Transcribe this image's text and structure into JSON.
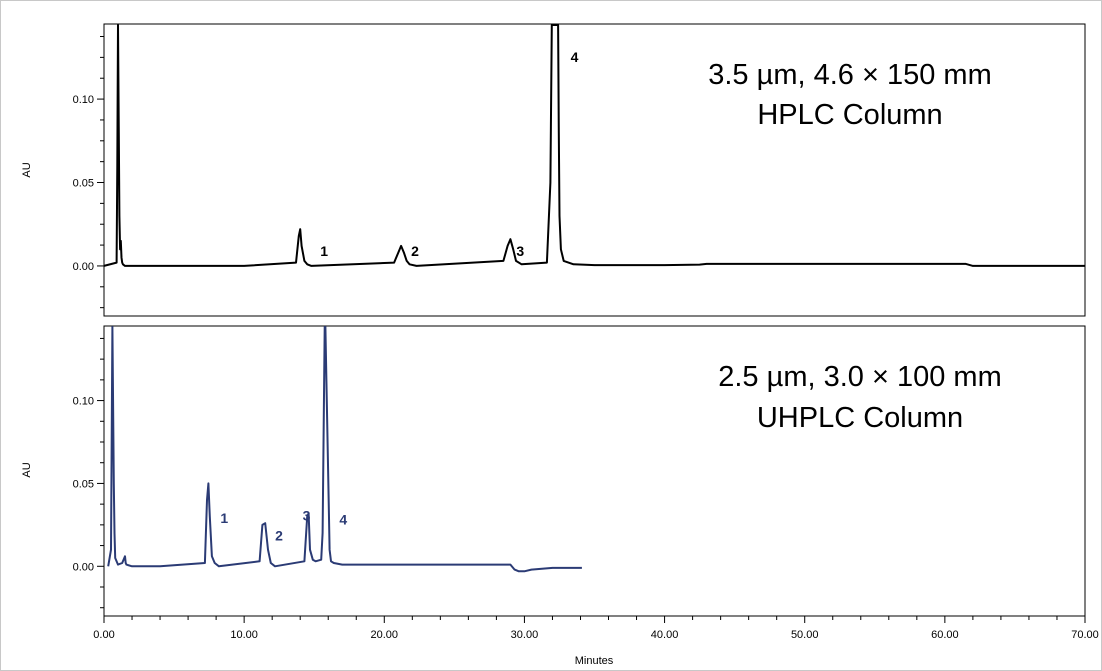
{
  "chart_data": [
    {
      "type": "line",
      "title_lines": [
        "3.5 µm, 4.6 × 150 mm",
        "HPLC Column"
      ],
      "ylabel": "AU",
      "xlim": [
        0,
        70
      ],
      "ylim": [
        -0.03,
        0.145
      ],
      "yticks": [
        0.0,
        0.05,
        0.1
      ],
      "ytick_labels": [
        "0.00",
        "0.05",
        "0.10"
      ],
      "color": "#000000",
      "series": [
        {
          "x": [
            0,
            0.9,
            0.95,
            1.0,
            1.1,
            1.15,
            1.2,
            1.25,
            1.3,
            1.35,
            1.5,
            3,
            5,
            10,
            13.7,
            13.9,
            14.0,
            14.1,
            14.3,
            14.5,
            14.8,
            20.7,
            21.0,
            21.2,
            21.4,
            21.6,
            21.8,
            22.3,
            28.5,
            28.8,
            29.0,
            29.2,
            29.4,
            29.8,
            31.6,
            31.85,
            31.95,
            32.4,
            32.45,
            32.5,
            32.6,
            32.8,
            33.5,
            35,
            40,
            42.5,
            43,
            45,
            50,
            55,
            61.5,
            62,
            70
          ],
          "y": [
            0,
            0.002,
            0.06,
            0.2,
            0.03,
            0.01,
            0.015,
            0.005,
            0.002,
            0.001,
            0.0,
            0.0,
            0.0,
            0.0,
            0.002,
            0.018,
            0.022,
            0.012,
            0.003,
            0.001,
            0.0,
            0.002,
            0.008,
            0.012,
            0.008,
            0.003,
            0.001,
            0.0,
            0.003,
            0.012,
            0.016,
            0.01,
            0.003,
            0.001,
            0.002,
            0.05,
            0.2,
            0.2,
            0.08,
            0.03,
            0.01,
            0.003,
            0.001,
            0.0005,
            0.0005,
            0.0008,
            0.0012,
            0.0012,
            0.0012,
            0.0012,
            0.0012,
            0.0,
            0.0
          ]
        }
      ],
      "peaks": [
        {
          "label": "1",
          "x": 14.0
        },
        {
          "label": "2",
          "x": 21.2
        },
        {
          "label": "3",
          "x": 29.0
        },
        {
          "label": "4",
          "x": 32.3
        }
      ]
    },
    {
      "type": "line",
      "title_lines": [
        "2.5 µm, 3.0 × 100 mm",
        "UHPLC Column"
      ],
      "ylabel": "AU",
      "xlabel": "Minutes",
      "xlim": [
        0,
        70
      ],
      "ylim": [
        -0.03,
        0.145
      ],
      "yticks": [
        0.0,
        0.05,
        0.1
      ],
      "ytick_labels": [
        "0.00",
        "0.05",
        "0.10"
      ],
      "xticks": [
        0,
        10,
        20,
        30,
        40,
        50,
        60,
        70
      ],
      "xtick_labels": [
        "0.00",
        "10.00",
        "20.00",
        "30.00",
        "40.00",
        "50.00",
        "60.00",
        "70.00"
      ],
      "color": "#2b3b75",
      "series": [
        {
          "x": [
            0.3,
            0.5,
            0.6,
            0.7,
            0.75,
            0.8,
            1.0,
            1.3,
            1.5,
            1.55,
            1.6,
            2,
            4,
            7.2,
            7.35,
            7.45,
            7.55,
            7.7,
            7.9,
            8.2,
            11.1,
            11.3,
            11.5,
            11.7,
            11.9,
            12.2,
            14.3,
            14.5,
            14.6,
            14.7,
            14.9,
            15.1,
            15.5,
            15.6,
            15.75,
            15.8,
            16.1,
            16.2,
            16.4,
            17,
            20,
            25,
            29.0,
            29.3,
            29.6,
            30,
            30.5,
            32,
            34,
            34.1
          ],
          "y": [
            0,
            0.01,
            0.2,
            0.05,
            0.02,
            0.005,
            0.001,
            0.002,
            0.006,
            0.002,
            0.001,
            0.0,
            0.0,
            0.002,
            0.04,
            0.05,
            0.03,
            0.006,
            0.002,
            0.0,
            0.003,
            0.025,
            0.026,
            0.01,
            0.002,
            0.0,
            0.003,
            0.03,
            0.032,
            0.01,
            0.004,
            0.003,
            0.004,
            0.02,
            0.2,
            0.2,
            0.01,
            0.003,
            0.002,
            0.001,
            0.001,
            0.001,
            0.001,
            -0.002,
            -0.003,
            -0.003,
            -0.002,
            -0.001,
            -0.001,
            -0.001
          ]
        }
      ],
      "peaks": [
        {
          "label": "1",
          "x": 7.45
        },
        {
          "label": "2",
          "x": 11.5
        },
        {
          "label": "3",
          "x": 14.6
        },
        {
          "label": "4",
          "x": 15.8
        }
      ]
    }
  ]
}
